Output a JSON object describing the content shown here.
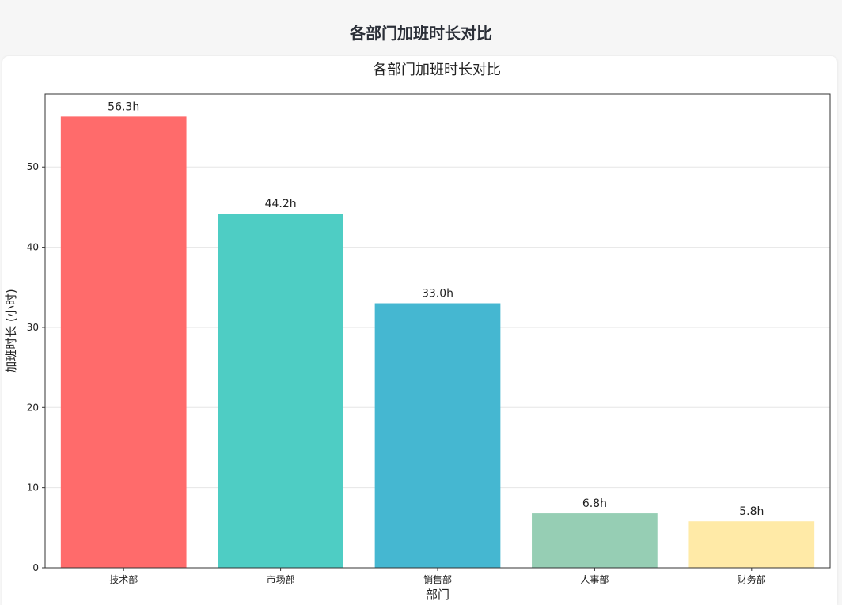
{
  "page": {
    "title": "各部门加班时长对比"
  },
  "chart_data": {
    "type": "bar",
    "title": "各部门加班时长对比",
    "xlabel": "部门",
    "ylabel": "加班时长 (小时)",
    "categories": [
      "技术部",
      "市场部",
      "销售部",
      "人事部",
      "财务部"
    ],
    "values": [
      56.3,
      44.2,
      33.0,
      6.8,
      5.8
    ],
    "data_labels": [
      "56.3h",
      "44.2h",
      "33.0h",
      "6.8h",
      "5.8h"
    ],
    "colors": [
      "#ff6b6b",
      "#4ecdc4",
      "#45b7d1",
      "#96ceb4",
      "#ffeaa7"
    ],
    "ylim": [
      0,
      59.1
    ],
    "yticks": [
      0,
      10,
      20,
      30,
      40,
      50
    ],
    "grid": "horizontal",
    "legend": "none"
  }
}
